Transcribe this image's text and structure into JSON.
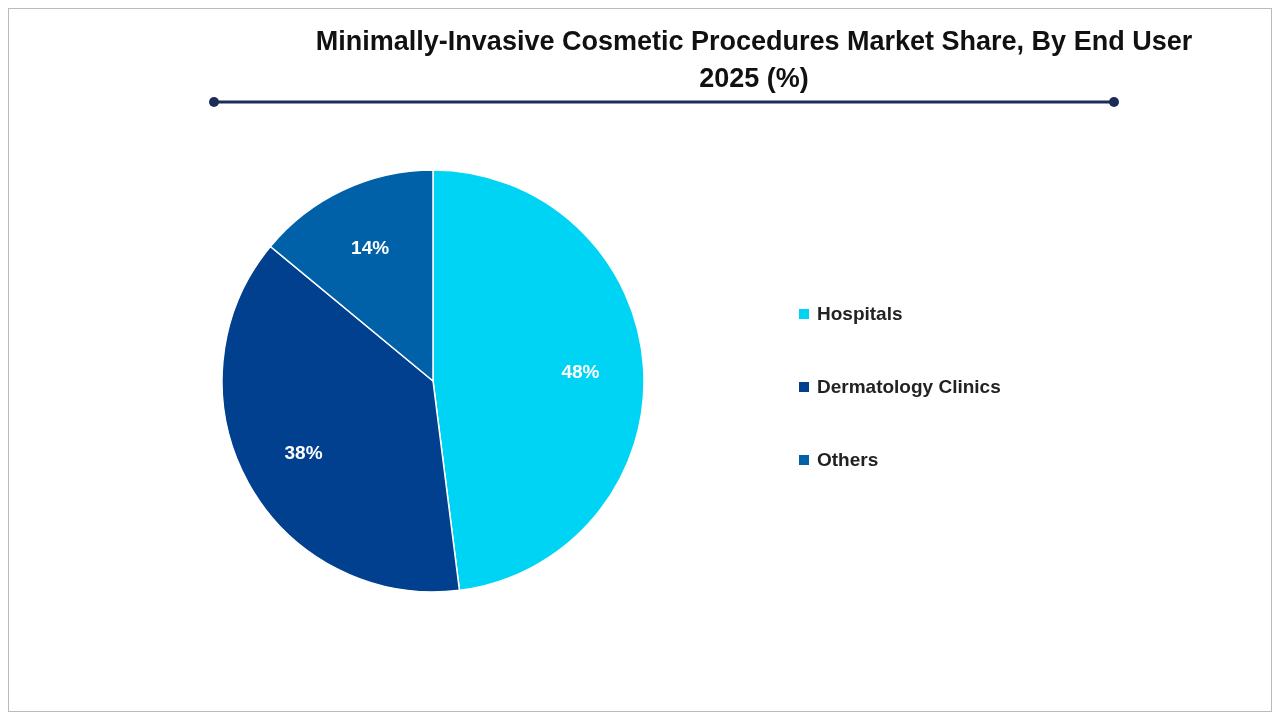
{
  "chart_data": {
    "type": "pie",
    "title": "Minimally-Invasive Cosmetic Procedures Market Share, By End User 2025 (%)",
    "categories": [
      "Hospitals",
      "Dermatology Clinics",
      "Others"
    ],
    "values": [
      48,
      38,
      14
    ],
    "colors": [
      "#00d4f5",
      "#00408f",
      "#0061a8"
    ],
    "value_labels": [
      "48%",
      "38%",
      "14%"
    ],
    "legend": "right"
  }
}
